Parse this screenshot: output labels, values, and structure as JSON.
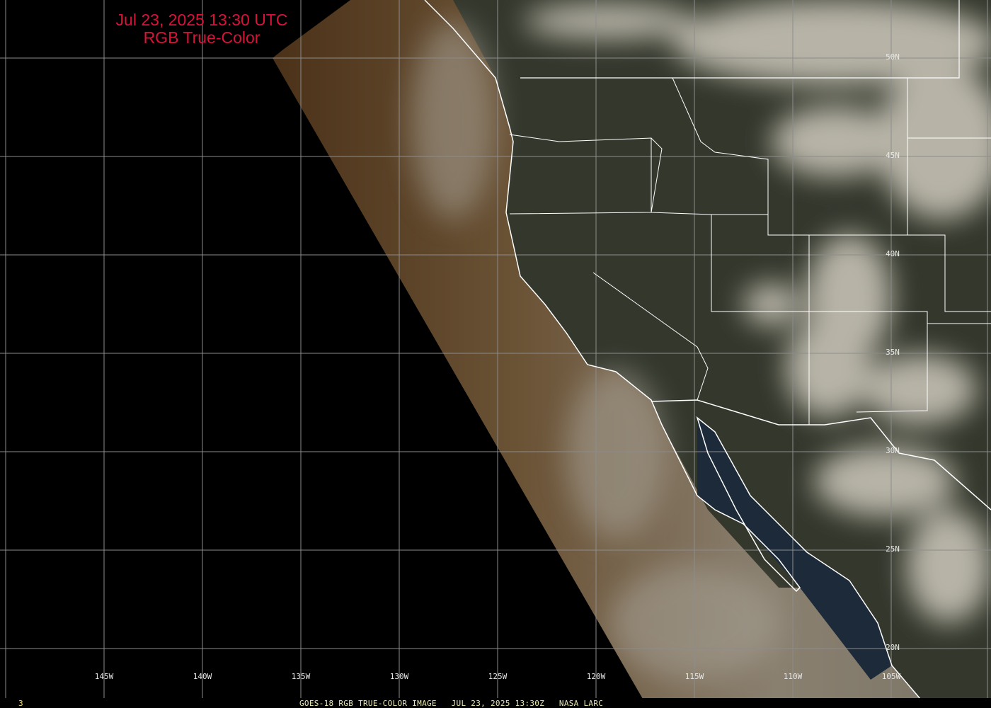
{
  "title": {
    "line1": "Jul 23, 2025 13:30 UTC",
    "line2": "RGB True-Color",
    "color": "#d8133a"
  },
  "longitude_labels": [
    "145W",
    "140W",
    "135W",
    "130W",
    "125W",
    "120W",
    "115W",
    "110W",
    "105W"
  ],
  "latitude_labels": [
    "50N",
    "45N",
    "40N",
    "35N",
    "30N",
    "25N",
    "20N"
  ],
  "footer": {
    "frame": "3",
    "caption": "GOES-18 RGB TRUE-COLOR IMAGE   JUL 23, 2025 13:30Z   NASA LARC"
  },
  "colors": {
    "grid": "#8c8c8c",
    "boundaries": "#ffffff",
    "background": "#000000"
  }
}
